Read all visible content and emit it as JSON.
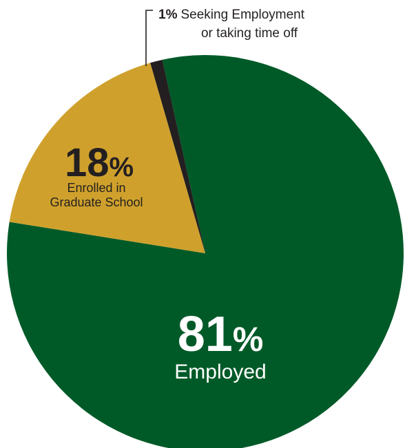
{
  "chart_data": {
    "type": "pie",
    "slices": [
      {
        "value": 81,
        "pct_label": "81",
        "pct_sign": "%",
        "text_lines": [
          "Employed"
        ],
        "color": "#005a28",
        "label_color": "#ffffff"
      },
      {
        "value": 18,
        "pct_label": "18",
        "pct_sign": "%",
        "text_lines": [
          "Enrolled in",
          "Graduate School"
        ],
        "color": "#cfa12c",
        "label_color": "#231f20"
      },
      {
        "value": 1,
        "pct_label": "1%",
        "text_lines": [
          "Seeking Employment",
          "or taking time off"
        ],
        "color": "#231f20",
        "label_color": "#231f20"
      }
    ],
    "legend": "none",
    "grid": false
  }
}
